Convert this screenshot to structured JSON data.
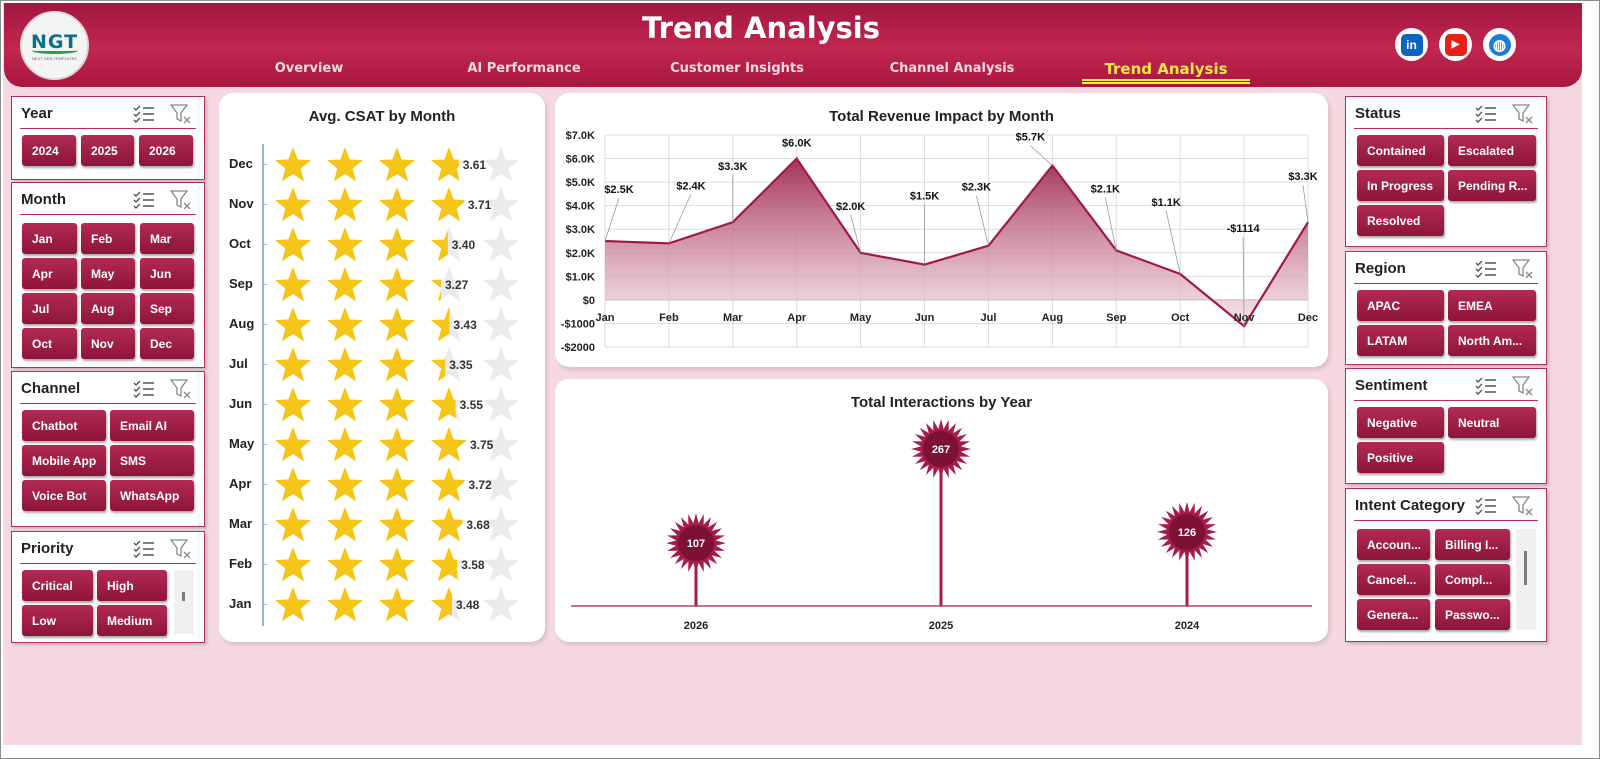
{
  "header": {
    "title": "Trend Analysis",
    "logo_text": "NGT",
    "logo_tagline": "NEXT GEN TEMPLATES",
    "tabs": [
      {
        "label": "Overview"
      },
      {
        "label": "AI Performance"
      },
      {
        "label": "Customer Insights"
      },
      {
        "label": "Channel Analysis"
      },
      {
        "label": "Trend Analysis",
        "active": true
      }
    ],
    "social": [
      {
        "name": "linkedin-icon",
        "glyph": "in",
        "color": "#0a66c2"
      },
      {
        "name": "youtube-icon",
        "glyph": "▶",
        "color": "#e62117"
      },
      {
        "name": "globe-icon",
        "glyph": "◍",
        "color": "#1b7fd6"
      }
    ]
  },
  "slicers": {
    "year": {
      "title": "Year",
      "items": [
        "2024",
        "2025",
        "2026"
      ]
    },
    "month": {
      "title": "Month",
      "items": [
        "Jan",
        "Feb",
        "Mar",
        "Apr",
        "May",
        "Jun",
        "Jul",
        "Aug",
        "Sep",
        "Oct",
        "Nov",
        "Dec"
      ]
    },
    "channel": {
      "title": "Channel",
      "items": [
        "Chatbot",
        "Email AI",
        "Mobile App",
        "SMS",
        "Voice Bot",
        "WhatsApp"
      ]
    },
    "priority": {
      "title": "Priority",
      "items": [
        "Critical",
        "High",
        "Low",
        "Medium"
      ]
    },
    "status": {
      "title": "Status",
      "items": [
        "Contained",
        "Escalated",
        "In Progress",
        "Pending R...",
        "Resolved"
      ]
    },
    "region": {
      "title": "Region",
      "items": [
        "APAC",
        "EMEA",
        "LATAM",
        "North Am..."
      ]
    },
    "sentiment": {
      "title": "Sentiment",
      "items": [
        "Negative",
        "Neutral",
        "Positive"
      ]
    },
    "intent": {
      "title": "Intent Category",
      "items": [
        "Accoun...",
        "Billing I...",
        "Cancel...",
        "Compl...",
        "Genera...",
        "Passwo..."
      ]
    }
  },
  "colors": {
    "accent": "#a41c47",
    "accent_dark": "#8d1539",
    "star": "#f5c518",
    "star_empty": "#ebebeb",
    "background": "#f6d9e0",
    "area_fill_top": "#a0284f",
    "area_fill_bottom": "#f3dce4"
  },
  "chart_data": [
    {
      "type": "bar",
      "title": "Avg. CSAT by Month",
      "categories": [
        "Dec",
        "Nov",
        "Oct",
        "Sep",
        "Aug",
        "Jul",
        "Jun",
        "May",
        "Apr",
        "Mar",
        "Feb",
        "Jan"
      ],
      "values": [
        3.61,
        3.71,
        3.4,
        3.27,
        3.43,
        3.35,
        3.55,
        3.75,
        3.72,
        3.68,
        3.58,
        3.48
      ],
      "labels": [
        "3.61",
        "3.71",
        "3.40",
        "3.27",
        "3.43",
        "3.35",
        "3.55",
        "3.75",
        "3.72",
        "3.68",
        "3.58",
        "3.48"
      ],
      "max": 5,
      "marker": "star"
    },
    {
      "type": "area",
      "title": "Total Revenue  Impact by Month",
      "categories": [
        "Jan",
        "Feb",
        "Mar",
        "Apr",
        "May",
        "Jun",
        "Jul",
        "Aug",
        "Sep",
        "Oct",
        "Nov",
        "Dec"
      ],
      "values": [
        2500,
        2400,
        3300,
        6000,
        2000,
        1500,
        2300,
        5700,
        2100,
        1100,
        -1114,
        3300
      ],
      "labels": [
        "$2.5K",
        "$2.4K",
        "$3.3K",
        "$6.0K",
        "$2.0K",
        "$1.5K",
        "$2.3K",
        "$5.7K",
        "$2.1K",
        "$1.1K",
        "-$1114",
        "$3.3K"
      ],
      "ylim": [
        -2000,
        7000
      ],
      "ytick_values": [
        7000,
        6000,
        5000,
        4000,
        3000,
        2000,
        1000,
        0,
        -1000,
        -2000
      ],
      "yticks": [
        "$7.0K",
        "$6.0K",
        "$5.0K",
        "$4.0K",
        "$3.0K",
        "$2.0K",
        "$1.0K",
        "$0",
        "-$1000",
        "-$2000"
      ],
      "grid": true
    },
    {
      "type": "bar",
      "title": "Total Interactions by Year",
      "categories": [
        "2026",
        "2025",
        "2024"
      ],
      "values": [
        107,
        267,
        126
      ],
      "labels": [
        "107",
        "267",
        "126"
      ],
      "marker": "starburst-lollipop"
    }
  ]
}
